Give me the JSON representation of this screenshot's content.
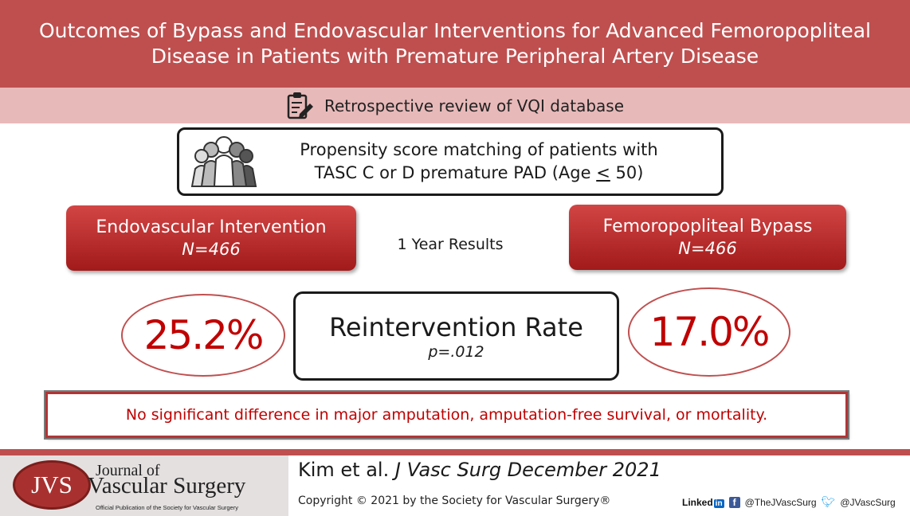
{
  "header": {
    "title_line1": "Outcomes of Bypass and Endovascular Interventions for Advanced Femoropopliteal",
    "title_line2": "Disease in Patients with Premature Peripheral Artery Disease"
  },
  "study_type": {
    "icon": "clipboard-pencil-icon",
    "text": "Retrospective review of VQI database"
  },
  "population": {
    "icon": "people-group-icon",
    "line1": "Propensity score matching of patients with",
    "line2_pre": "TASC C or D premature PAD (Age ",
    "line2_le": "<",
    "line2_post": " 50)"
  },
  "groups": {
    "endovascular": {
      "title": "Endovascular Intervention",
      "n": "N=466"
    },
    "bypass": {
      "title": "Femoropopliteal Bypass",
      "n": "N=466"
    }
  },
  "results": {
    "period": "1 Year Results",
    "metric": "Reintervention Rate",
    "p_value": "p=.012",
    "endovascular_value": "25.2%",
    "bypass_value": "17.0%"
  },
  "note": "No significant difference in major amputation, amputation-free survival, or mortality.",
  "footer": {
    "logo": {
      "abbr": "JVS",
      "journal_of": "Journal of",
      "vascular_surgery": "Vascular Surgery",
      "subtitle": "Official Publication of the Society for Vascular Surgery"
    },
    "citation_authors": "Kim et al.",
    "citation_journal": "J Vasc Surg December 2021",
    "copyright": "Copyright © 2021 by the Society for Vascular Surgery®",
    "social": {
      "linkedin_word": "Linked",
      "linkedin_in": "in",
      "facebook_handle": "@TheJVascSurg",
      "twitter_handle": "@JVascSurg"
    }
  },
  "colors": {
    "header_bg": "#bf4f4f",
    "subbar_bg": "#e8b9b9",
    "accent_red": "#c00000",
    "group_red": "#b82e2e"
  }
}
